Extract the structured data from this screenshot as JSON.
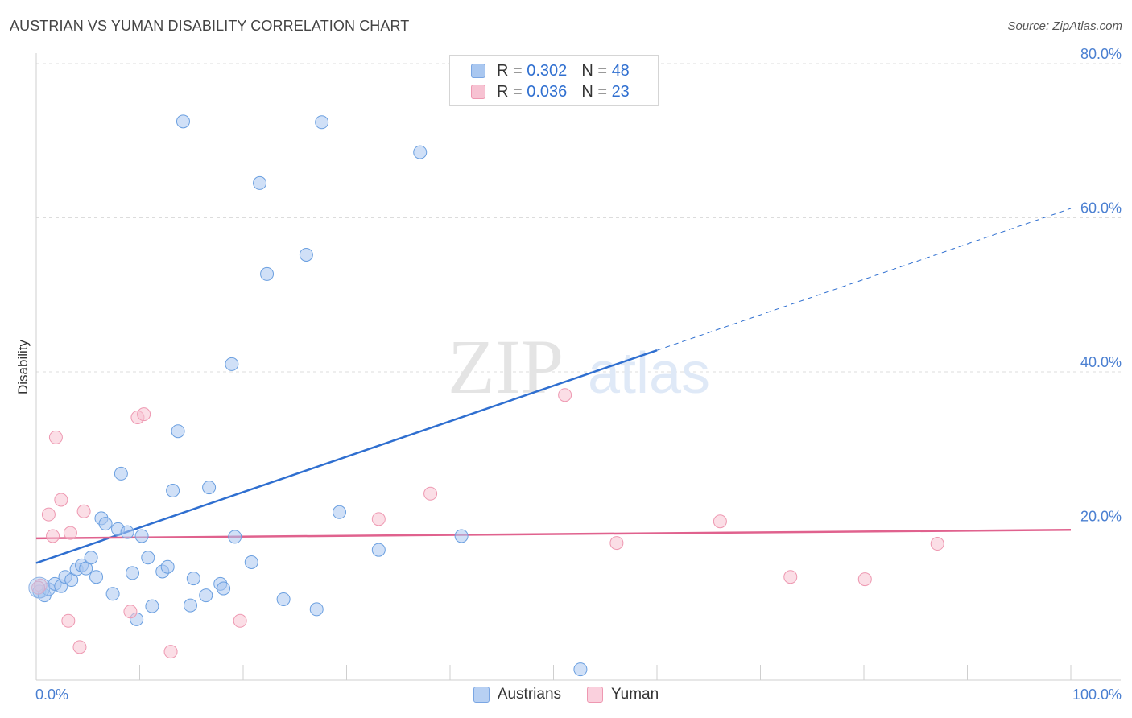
{
  "title": "AUSTRIAN VS YUMAN DISABILITY CORRELATION CHART",
  "source": "Source: ZipAtlas.com",
  "watermark": {
    "zip": "ZIP",
    "atlas": "atlas"
  },
  "legend": {
    "rows": [
      {
        "r_label": "R =",
        "r_value": "0.302",
        "n_label": "N =",
        "n_value": "48",
        "color": "#a9c7f0",
        "border": "#7aa6e3"
      },
      {
        "r_label": "R =",
        "r_value": "0.036",
        "n_label": "N =",
        "n_value": "23",
        "color": "#f7c2d2",
        "border": "#ee98b1"
      }
    ]
  },
  "bottom_legend": [
    {
      "label": "Austrians",
      "color": "#b7d0f3",
      "border": "#7aa6e3"
    },
    {
      "label": "Yuman",
      "color": "#fad0dd",
      "border": "#ee98b1"
    }
  ],
  "chart_data": {
    "type": "scatter",
    "title": "AUSTRIAN VS YUMAN DISABILITY CORRELATION CHART",
    "ylabel": "Disability",
    "xlabel": "",
    "xlim": [
      0,
      100
    ],
    "ylim": [
      0,
      80
    ],
    "x_tick_labels": [
      "0.0%",
      "100.0%"
    ],
    "y_ticks": [
      20,
      40,
      60,
      80
    ],
    "y_tick_labels": [
      "20.0%",
      "40.0%",
      "60.0%",
      "80.0%"
    ],
    "series": [
      {
        "name": "Austrians",
        "color": "#6a9fe0",
        "fill": "#a9c7f0",
        "line_color": "#2f6fd0",
        "trend": {
          "x0": 0,
          "y0": 15.2,
          "x1": 60,
          "y1": 42.8,
          "dash_to_x": 100,
          "dash_to_y": 61.2
        },
        "points": [
          [
            0.3,
            11.5
          ],
          [
            0.8,
            11.0
          ],
          [
            1.2,
            11.8
          ],
          [
            1.8,
            12.5
          ],
          [
            2.4,
            12.2
          ],
          [
            2.8,
            13.4
          ],
          [
            3.4,
            13.0
          ],
          [
            3.9,
            14.4
          ],
          [
            4.4,
            14.9
          ],
          [
            4.8,
            14.5
          ],
          [
            5.3,
            15.9
          ],
          [
            5.8,
            13.4
          ],
          [
            6.3,
            21.0
          ],
          [
            6.7,
            20.3
          ],
          [
            7.4,
            11.2
          ],
          [
            7.9,
            19.6
          ],
          [
            8.2,
            26.8
          ],
          [
            8.8,
            19.2
          ],
          [
            9.3,
            13.9
          ],
          [
            9.7,
            7.9
          ],
          [
            10.2,
            18.7
          ],
          [
            10.8,
            15.9
          ],
          [
            11.2,
            9.6
          ],
          [
            12.2,
            14.1
          ],
          [
            12.7,
            14.7
          ],
          [
            13.2,
            24.6
          ],
          [
            13.7,
            32.3
          ],
          [
            14.2,
            72.5
          ],
          [
            14.9,
            9.7
          ],
          [
            15.2,
            13.2
          ],
          [
            16.4,
            11.0
          ],
          [
            16.7,
            25.0
          ],
          [
            17.8,
            12.5
          ],
          [
            18.1,
            11.9
          ],
          [
            18.9,
            41.0
          ],
          [
            19.2,
            18.6
          ],
          [
            20.8,
            15.3
          ],
          [
            21.6,
            64.5
          ],
          [
            22.3,
            52.7
          ],
          [
            23.9,
            10.5
          ],
          [
            26.1,
            55.2
          ],
          [
            27.1,
            9.2
          ],
          [
            27.6,
            72.4
          ],
          [
            29.3,
            21.8
          ],
          [
            33.1,
            16.9
          ],
          [
            37.1,
            68.5
          ],
          [
            41.1,
            18.7
          ],
          [
            52.6,
            1.4
          ]
        ]
      },
      {
        "name": "Yuman",
        "color": "#ee98b1",
        "fill": "#f7c2d2",
        "line_color": "#e0628e",
        "trend": {
          "x0": 0,
          "y0": 18.4,
          "x1": 100,
          "y1": 19.5
        },
        "points": [
          [
            0.4,
            12.3
          ],
          [
            1.2,
            21.5
          ],
          [
            1.6,
            18.7
          ],
          [
            1.9,
            31.5
          ],
          [
            2.4,
            23.4
          ],
          [
            3.1,
            7.7
          ],
          [
            3.3,
            19.1
          ],
          [
            4.2,
            4.3
          ],
          [
            4.6,
            21.9
          ],
          [
            9.1,
            8.9
          ],
          [
            9.8,
            34.1
          ],
          [
            10.4,
            34.5
          ],
          [
            13.0,
            3.7
          ],
          [
            19.7,
            7.7
          ],
          [
            33.1,
            20.9
          ],
          [
            38.1,
            24.2
          ],
          [
            51.1,
            37.0
          ],
          [
            56.1,
            17.8
          ],
          [
            66.1,
            20.6
          ],
          [
            72.9,
            13.4
          ],
          [
            80.1,
            13.1
          ],
          [
            87.1,
            17.7
          ],
          [
            0.2,
            12.0
          ]
        ]
      }
    ]
  }
}
